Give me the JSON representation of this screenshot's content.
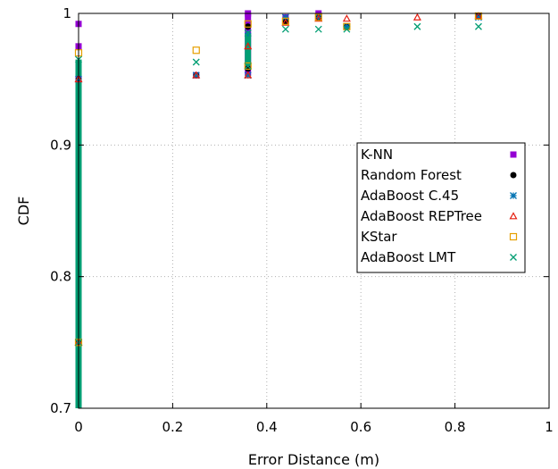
{
  "chart_data": {
    "type": "scatter",
    "xlabel": "Error Distance (m)",
    "ylabel": "CDF",
    "xlim": [
      0,
      1
    ],
    "ylim": [
      0.7,
      1
    ],
    "x_ticks": [
      "0",
      "0.2",
      "0.4",
      "0.6",
      "0.8",
      "1"
    ],
    "y_ticks": [
      "0.7",
      "0.8",
      "0.9",
      "1"
    ],
    "x_tick_values": [
      0,
      0.2,
      0.4,
      0.6,
      0.8,
      1
    ],
    "y_tick_values": [
      0.7,
      0.8,
      0.9,
      1
    ],
    "grid": true,
    "legend_position": "right",
    "series": [
      {
        "name": "K-NN",
        "marker": "filled-square",
        "color": "#9400d3",
        "x": [
          0,
          0,
          0,
          0.25,
          0.36,
          0.44,
          0.51,
          0.57,
          0.85
        ],
        "y": [
          0.95,
          0.975,
          0.992,
          0.953,
          1.0,
          0.997,
          1.0,
          0.99,
          0.998
        ]
      },
      {
        "name": "Random Forest",
        "marker": "filled-circle",
        "color": "#000000",
        "x": [
          0,
          0,
          0.25,
          0.36,
          0.36,
          0.44,
          0.51,
          0.57,
          0.85
        ],
        "y": [
          0.75,
          0.95,
          0.953,
          0.958,
          0.99,
          0.994,
          0.997,
          0.99,
          0.998
        ]
      },
      {
        "name": "AdaBoost C.45",
        "marker": "asterisk",
        "color": "#0072b2",
        "x": [
          0,
          0,
          0.25,
          0.36,
          0.36,
          0.44,
          0.51,
          0.57,
          0.85
        ],
        "y": [
          0.75,
          0.95,
          0.953,
          0.953,
          0.985,
          0.997,
          0.997,
          0.99,
          0.997
        ]
      },
      {
        "name": "AdaBoost REPTree",
        "marker": "open-triangle",
        "color": "#e51e10",
        "x": [
          0,
          0,
          0.25,
          0.36,
          0.36,
          0.44,
          0.51,
          0.57,
          0.72,
          0.85
        ],
        "y": [
          0.75,
          0.95,
          0.953,
          0.953,
          0.975,
          0.993,
          0.996,
          0.996,
          0.997,
          0.998
        ]
      },
      {
        "name": "KStar",
        "marker": "open-square",
        "color": "#e69f00",
        "x": [
          0,
          0,
          0.25,
          0.36,
          0.36,
          0.44,
          0.51,
          0.57,
          0.85
        ],
        "y": [
          0.75,
          0.97,
          0.972,
          0.96,
          0.992,
          0.994,
          0.997,
          0.99,
          0.998
        ]
      },
      {
        "name": "AdaBoost LMT",
        "marker": "cross",
        "color": "#009e73",
        "x": [
          0,
          0,
          0.25,
          0.36,
          0.36,
          0.44,
          0.51,
          0.57,
          0.72,
          0.85
        ],
        "y": [
          0.75,
          0.965,
          0.963,
          0.96,
          0.985,
          0.988,
          0.988,
          0.988,
          0.99,
          0.99
        ]
      }
    ],
    "vertical_segments": [
      {
        "series": "AdaBoost LMT",
        "x": 0,
        "y0": 0.7,
        "y1": 0.965
      },
      {
        "series": "K-NN",
        "x": 0.36,
        "y0": 0.953,
        "y1": 1.0
      },
      {
        "series": "AdaBoost LMT",
        "x": 0.36,
        "y0": 0.96,
        "y1": 0.985
      }
    ]
  }
}
